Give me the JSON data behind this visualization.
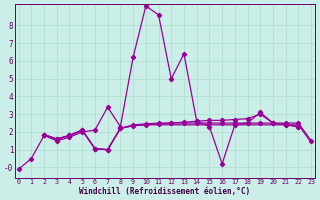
{
  "xlabel": "Windchill (Refroidissement éolien,°C)",
  "background_color": "#cceee8",
  "grid_color": "#aaddcc",
  "line_color": "#990099",
  "x_ticks": [
    0,
    1,
    2,
    3,
    4,
    5,
    6,
    7,
    8,
    9,
    10,
    11,
    12,
    13,
    14,
    15,
    16,
    17,
    18,
    19,
    20,
    21,
    22,
    23
  ],
  "y_ticks": [
    0,
    1,
    2,
    3,
    4,
    5,
    6,
    7,
    8
  ],
  "ylim": [
    -0.6,
    9.2
  ],
  "xlim": [
    -0.3,
    23.3
  ],
  "series": [
    {
      "y": [
        -0.1,
        0.5,
        1.8,
        1.5,
        1.7,
        2.0,
        2.1,
        3.4,
        2.3,
        6.2,
        9.1,
        8.6,
        5.0,
        6.4,
        2.6,
        2.3,
        0.2,
        2.4,
        2.5,
        3.1,
        2.5,
        2.4,
        2.3,
        null
      ],
      "has_markers": true
    },
    {
      "y": [
        null,
        null,
        1.85,
        1.6,
        1.8,
        2.1,
        1.05,
        1.0,
        2.2,
        2.4,
        2.45,
        2.5,
        2.5,
        2.55,
        2.6,
        2.65,
        2.65,
        2.7,
        2.75,
        3.0,
        2.5,
        2.4,
        2.3,
        null
      ],
      "has_markers": true
    },
    {
      "y": [
        null,
        null,
        1.85,
        1.6,
        1.8,
        2.1,
        1.05,
        1.0,
        2.2,
        2.35,
        2.4,
        2.45,
        2.5,
        2.5,
        2.5,
        2.5,
        2.5,
        2.5,
        2.5,
        2.5,
        2.5,
        2.5,
        2.5,
        1.5
      ],
      "has_markers": true
    },
    {
      "y": [
        null,
        null,
        1.85,
        1.6,
        1.8,
        2.1,
        1.05,
        1.0,
        2.2,
        2.35,
        2.4,
        2.4,
        2.4,
        2.4,
        2.4,
        2.4,
        2.4,
        2.4,
        2.4,
        2.4,
        2.4,
        2.4,
        2.4,
        1.4
      ],
      "has_markers": false
    }
  ]
}
